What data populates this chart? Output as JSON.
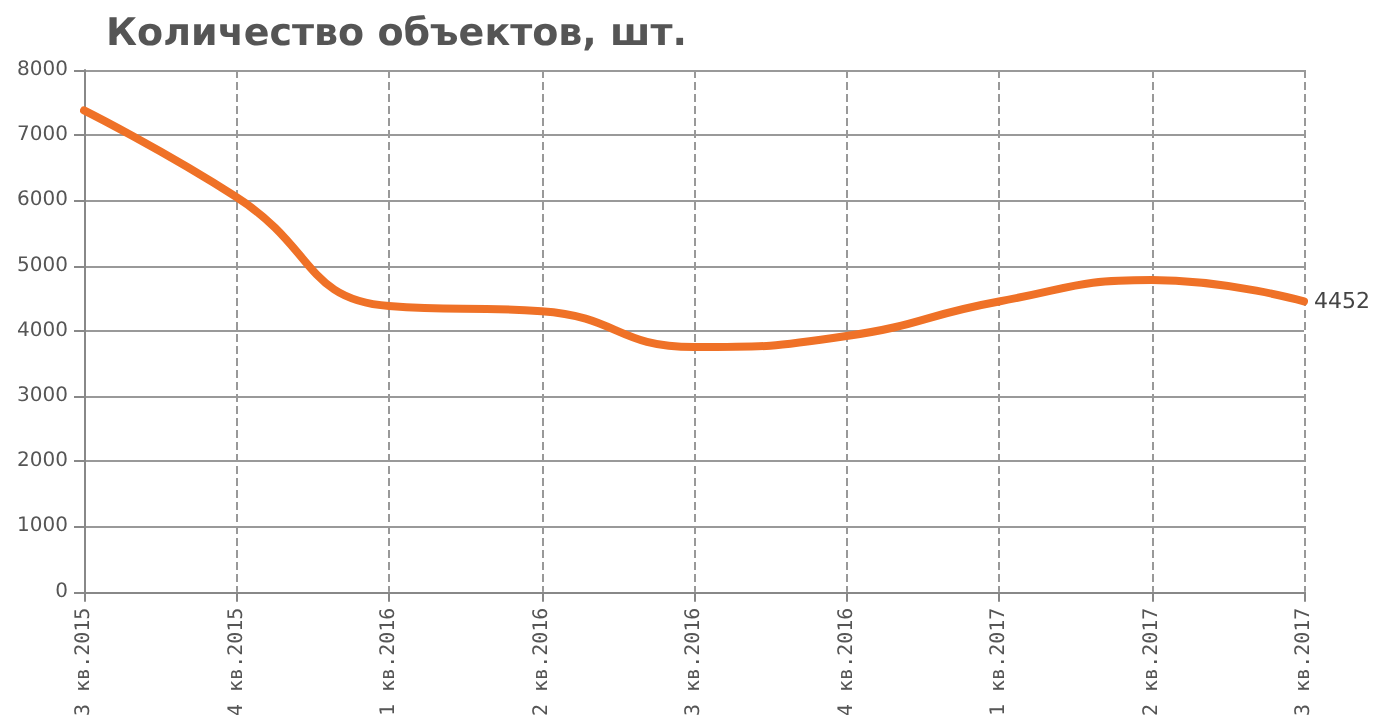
{
  "chart_data": {
    "type": "line",
    "title": "Количество объектов, шт.",
    "categories": [
      "3 кв.2015",
      "4 кв.2015",
      "1 кв.2016",
      "2 кв.2016",
      "3 кв.2016",
      "4 кв.2016",
      "1 кв.2017",
      "2 кв.2017",
      "3 кв.2017"
    ],
    "series": [
      {
        "color": "#ef7127",
        "values": [
          7380,
          6050,
          4380,
          4300,
          3750,
          3920,
          4450,
          4780,
          4452
        ],
        "value_labels": [
          null,
          null,
          null,
          null,
          null,
          null,
          null,
          null,
          "4452"
        ]
      }
    ],
    "ylim": [
      0,
      8000
    ],
    "yticks": [
      0,
      1000,
      2000,
      3000,
      4000,
      5000,
      6000,
      7000,
      8000
    ],
    "grid": true,
    "marker": "none",
    "line_style": "solid"
  }
}
